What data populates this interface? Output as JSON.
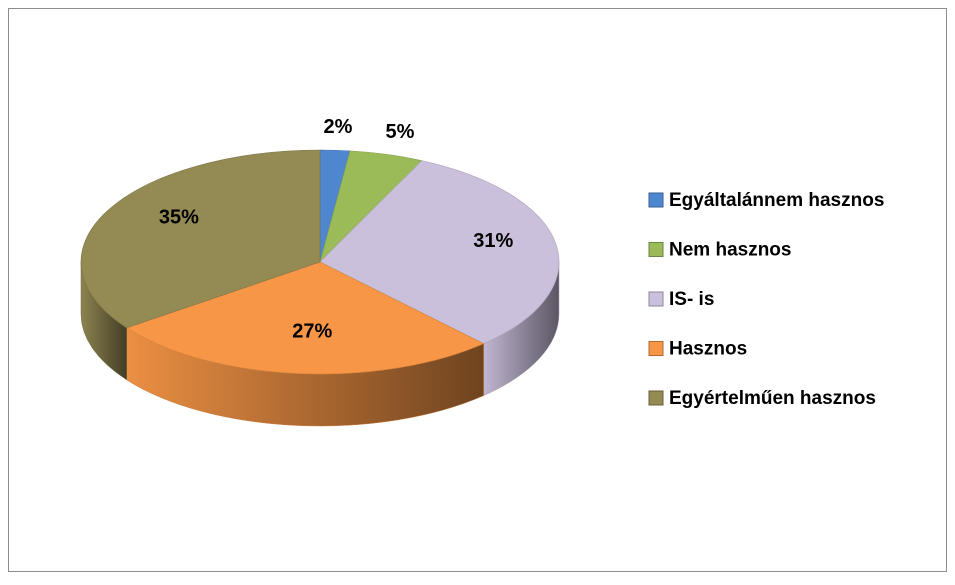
{
  "chart_data": {
    "type": "pie",
    "categories": [
      "Egyáltalánnem hasznos",
      "Nem hasznos",
      "IS- is",
      "Hasznos",
      "Egyértelműen hasznos"
    ],
    "values": [
      2,
      5,
      31,
      27,
      35
    ],
    "value_labels": [
      "2%",
      "5%",
      "31%",
      "27%",
      "35%"
    ],
    "colors": [
      "#4f86d0",
      "#9bbb59",
      "#cbc0dc",
      "#f79646",
      "#948a54"
    ],
    "legend": "right"
  }
}
